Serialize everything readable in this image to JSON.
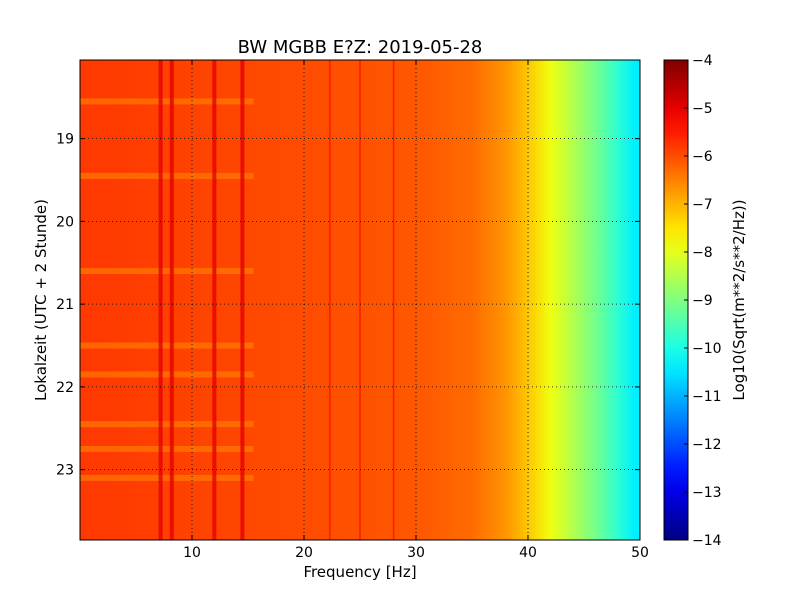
{
  "chart_data": {
    "type": "heatmap",
    "title": "BW MGBB E?Z: 2019-05-28",
    "xlabel": "Frequency [Hz]",
    "ylabel": "Lokalzeit (UTC + 2 Stunde)",
    "xlim": [
      0,
      50
    ],
    "ylim": [
      18.05,
      23.85
    ],
    "y_inverted": true,
    "grid": true,
    "x_ticks": [
      10,
      20,
      30,
      40,
      50
    ],
    "x_tick_labels": [
      "10",
      "20",
      "30",
      "40",
      "50"
    ],
    "y_ticks": [
      19,
      20,
      21,
      22,
      23
    ],
    "y_tick_labels": [
      "19",
      "20",
      "21",
      "22",
      "23"
    ],
    "colormap": "jet",
    "colorbar": {
      "label": "Log10(Sqrt(m**2/s**2/Hz))",
      "range": [
        -14,
        -4
      ],
      "ticks": [
        -4,
        -5,
        -6,
        -7,
        -8,
        -9,
        -10,
        -11,
        -12,
        -13,
        -14
      ],
      "tick_labels": [
        "−4",
        "−5",
        "−6",
        "−7",
        "−8",
        "−9",
        "−10",
        "−11",
        "−12",
        "−13",
        "−14"
      ]
    },
    "spectrum_profile": {
      "frequency_hz": [
        0,
        10,
        20,
        30,
        35,
        38,
        40,
        42,
        44,
        46,
        48,
        49.5
      ],
      "level": [
        -5.8,
        -5.9,
        -6.0,
        -6.1,
        -6.3,
        -6.7,
        -7.2,
        -7.9,
        -8.5,
        -9.1,
        -9.8,
        -10.4
      ]
    },
    "narrowband_lines_hz": [
      7.2,
      8.2,
      12.0,
      14.5,
      22.3,
      25.0,
      28.0
    ],
    "time_gaps_hour": [
      18.55,
      19.45,
      20.6,
      21.5,
      21.85,
      22.45,
      22.75,
      23.1
    ]
  }
}
